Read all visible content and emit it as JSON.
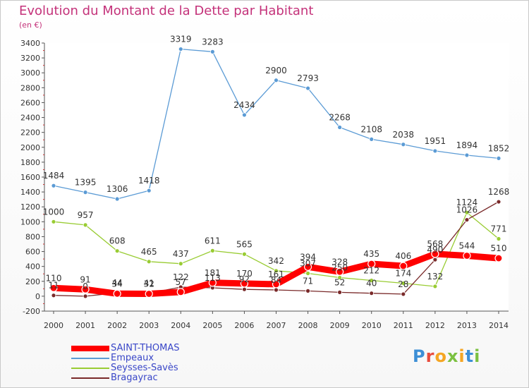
{
  "header": {
    "title": "Evolution du Montant de la Dette par Habitant",
    "subtitle": "(en €)"
  },
  "logo": {
    "letters": [
      "P",
      "r",
      "o",
      "x",
      "i",
      "t",
      "i"
    ],
    "colors": [
      "#3d8fd6",
      "#e84c3d",
      "#f5a623",
      "#7cc142",
      "#f5a623",
      "#3d8fd6",
      "#7cc142"
    ]
  },
  "chart_data": {
    "type": "line",
    "title": "Evolution du Montant de la Dette par Habitant",
    "subtitle": "(en €)",
    "x": [
      2000,
      2001,
      2002,
      2003,
      2004,
      2005,
      2006,
      2007,
      2008,
      2009,
      2010,
      2011,
      2012,
      2013,
      2014
    ],
    "ylim": [
      -200,
      3400
    ],
    "yticks": [
      -200,
      0,
      200,
      400,
      600,
      800,
      1000,
      1200,
      1400,
      1600,
      1800,
      2000,
      2200,
      2400,
      2600,
      2800,
      3000,
      3200,
      3400
    ],
    "grid": false,
    "legend_position": "bottom-left",
    "series": [
      {
        "name": "SAINT-THOMAS",
        "color": "#ff0000",
        "values": [
          110,
          91,
          34,
          32,
          57,
          181,
          170,
          161,
          394,
          328,
          435,
          406,
          568,
          544,
          510
        ],
        "labels": [
          "110",
          "91",
          "34",
          "32",
          "57",
          "181",
          "170",
          "161",
          "394",
          "328",
          "435",
          "406",
          "568",
          "544",
          "510"
        ]
      },
      {
        "name": "Empeaux",
        "color": "#5b9bd5",
        "values": [
          1484,
          1395,
          1306,
          1418,
          3319,
          3283,
          2434,
          2900,
          2793,
          2268,
          2108,
          2038,
          1951,
          1894,
          1852
        ],
        "labels": [
          "1484",
          "1395",
          "1306",
          "1418",
          "3319",
          "3283",
          "2434",
          "2900",
          "2793",
          "2268",
          "2108",
          "2038",
          "1951",
          "1894",
          "1852"
        ]
      },
      {
        "name": "Seysses-Savès",
        "color": "#99cc33",
        "values": [
          1000,
          957,
          608,
          465,
          437,
          611,
          565,
          342,
          307,
          250,
          212,
          174,
          132,
          1124,
          771
        ],
        "labels": [
          "1000",
          "957",
          "608",
          "465",
          "437",
          "611",
          "565",
          "342",
          "307",
          "250",
          "212",
          "174",
          "132",
          "1124",
          "771"
        ]
      },
      {
        "name": "Bragayrac",
        "color": "#7a2a2a",
        "values": [
          11,
          0,
          44,
          41,
          122,
          113,
          92,
          84,
          71,
          52,
          40,
          28,
          490,
          1026,
          1268
        ],
        "labels": [
          "11",
          "0",
          "44",
          "41",
          "122",
          "113",
          "92",
          "84",
          "71",
          "52",
          "40",
          "28",
          "490",
          "1026",
          "1268"
        ]
      }
    ]
  }
}
